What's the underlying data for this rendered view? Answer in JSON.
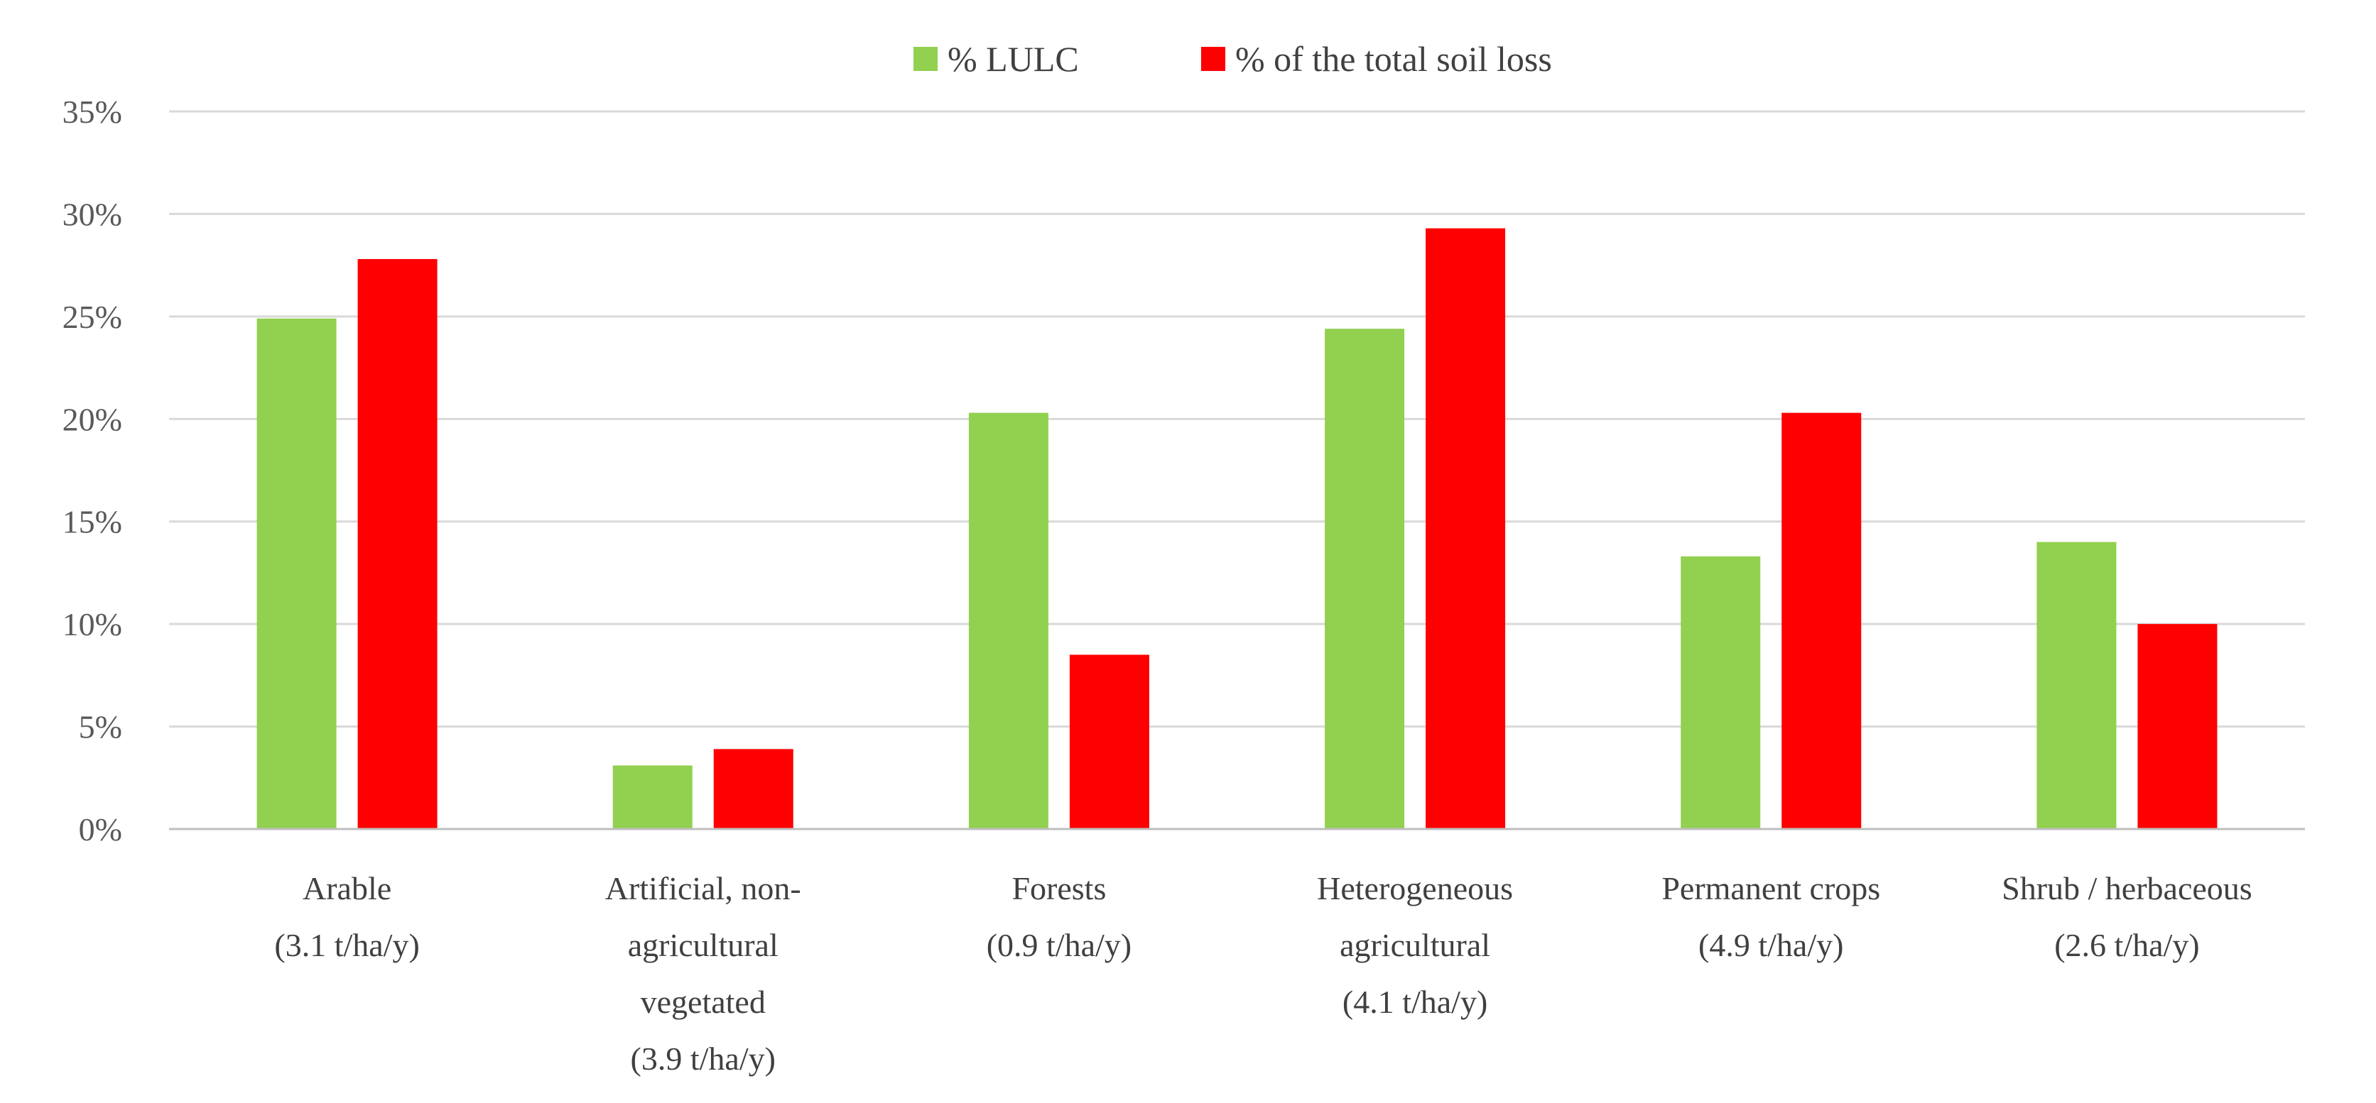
{
  "chart_data": {
    "type": "bar",
    "title": "",
    "xlabel": "",
    "ylabel": "",
    "ylim": [
      0,
      35
    ],
    "y_ticks": [
      0,
      5,
      10,
      15,
      20,
      25,
      30,
      35
    ],
    "y_tick_labels": [
      "0%",
      "5%",
      "10%",
      "15%",
      "20%",
      "25%",
      "30%",
      "35%"
    ],
    "grid": true,
    "legend_position": "top-center",
    "categories": [
      [
        "Arable",
        "(3.1 t/ha/y)"
      ],
      [
        "Artificial, non-",
        "agricultural",
        "vegetated",
        "(3.9 t/ha/y)"
      ],
      [
        "Forests",
        "(0.9 t/ha/y)"
      ],
      [
        "Heterogeneous",
        "agricultural",
        "(4.1 t/ha/y)"
      ],
      [
        "Permanent crops",
        "(4.9 t/ha/y)"
      ],
      [
        "Shrub / herbaceous",
        "(2.6 t/ha/y)"
      ]
    ],
    "series": [
      {
        "name": "% LULC",
        "color": "#92d050",
        "values": [
          24.9,
          3.1,
          20.3,
          24.4,
          13.3,
          14.0
        ]
      },
      {
        "name": "% of the total soil loss",
        "color": "#ff0000",
        "values": [
          27.8,
          3.9,
          8.5,
          29.3,
          20.3,
          10.0
        ]
      }
    ]
  }
}
